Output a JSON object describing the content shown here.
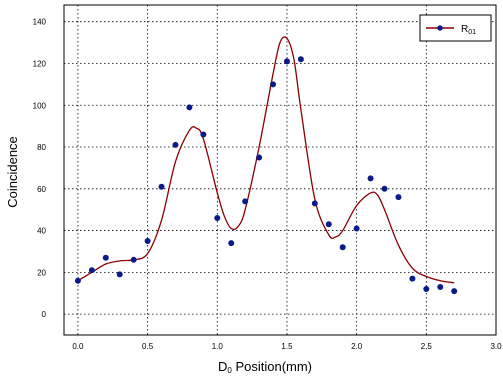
{
  "chart_data": {
    "type": "scatter",
    "title": "",
    "xlabel": {
      "prefix": "D",
      "sub": "0",
      "rest": " Position(mm)"
    },
    "ylabel": "Coincidence",
    "xlim": [
      -0.1,
      3.0
    ],
    "ylim": [
      -10,
      148
    ],
    "x_ticks": [
      "0.0",
      "0.5",
      "1.0",
      "1.5",
      "2.0",
      "2.5",
      "3.0"
    ],
    "y_ticks": [
      "0",
      "20",
      "40",
      "60",
      "80",
      "100",
      "120",
      "140"
    ],
    "grid": true,
    "legend_position": "top-right",
    "colors": {
      "marker": "#0a1a8a",
      "fit_line": "#8b0000"
    },
    "series": [
      {
        "name": {
          "prefix": "R",
          "sub": "01"
        },
        "points": [
          [
            0.0,
            16
          ],
          [
            0.1,
            21
          ],
          [
            0.2,
            27
          ],
          [
            0.3,
            19
          ],
          [
            0.4,
            26
          ],
          [
            0.5,
            35
          ],
          [
            0.6,
            61
          ],
          [
            0.7,
            81
          ],
          [
            0.8,
            99
          ],
          [
            0.9,
            86
          ],
          [
            1.0,
            46
          ],
          [
            1.1,
            34
          ],
          [
            1.2,
            54
          ],
          [
            1.3,
            75
          ],
          [
            1.4,
            110
          ],
          [
            1.5,
            121
          ],
          [
            1.6,
            122
          ],
          [
            1.7,
            53
          ],
          [
            1.8,
            43
          ],
          [
            1.9,
            32
          ],
          [
            2.0,
            41
          ],
          [
            2.1,
            65
          ],
          [
            2.2,
            60
          ],
          [
            2.3,
            56
          ],
          [
            2.4,
            17
          ],
          [
            2.5,
            12
          ],
          [
            2.6,
            13
          ],
          [
            2.7,
            11
          ]
        ],
        "fit_curve": [
          [
            0.0,
            16
          ],
          [
            0.1,
            20
          ],
          [
            0.2,
            24
          ],
          [
            0.3,
            25.5
          ],
          [
            0.4,
            26
          ],
          [
            0.5,
            29
          ],
          [
            0.6,
            45
          ],
          [
            0.7,
            73
          ],
          [
            0.8,
            88
          ],
          [
            0.85,
            89
          ],
          [
            0.9,
            84
          ],
          [
            1.0,
            58
          ],
          [
            1.05,
            47
          ],
          [
            1.1,
            41
          ],
          [
            1.15,
            42
          ],
          [
            1.2,
            50
          ],
          [
            1.3,
            80
          ],
          [
            1.4,
            115
          ],
          [
            1.45,
            130
          ],
          [
            1.5,
            132
          ],
          [
            1.55,
            122
          ],
          [
            1.6,
            98
          ],
          [
            1.7,
            55
          ],
          [
            1.8,
            38
          ],
          [
            1.85,
            37
          ],
          [
            1.9,
            40
          ],
          [
            2.0,
            52
          ],
          [
            2.1,
            58
          ],
          [
            2.15,
            57
          ],
          [
            2.2,
            50
          ],
          [
            2.3,
            33
          ],
          [
            2.4,
            22
          ],
          [
            2.5,
            18
          ],
          [
            2.6,
            16
          ],
          [
            2.7,
            15
          ]
        ]
      }
    ]
  }
}
